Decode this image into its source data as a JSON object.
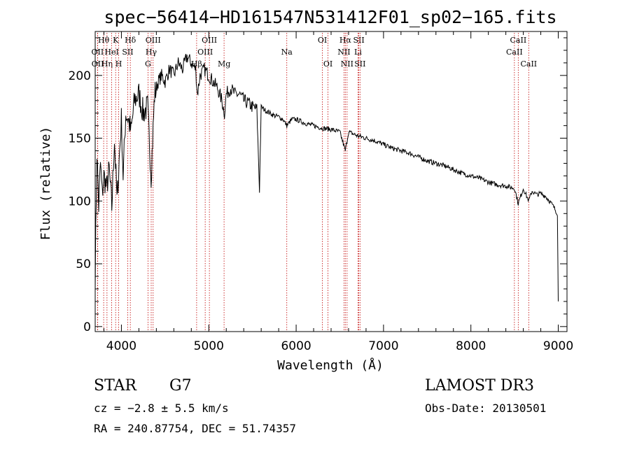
{
  "chart_data": {
    "type": "line",
    "title": "spec−56414−HD161547N531412F01_sp02−165.fits",
    "xlabel": "Wavelength (Å)",
    "ylabel": "Flux (relative)",
    "xlim": [
      3700,
      9100
    ],
    "ylim": [
      -4,
      235
    ],
    "xticks": [
      4000,
      5000,
      6000,
      7000,
      8000,
      9000
    ],
    "yticks": [
      0,
      50,
      100,
      150,
      200
    ],
    "series": [
      {
        "name": "flux",
        "x": [
          3700,
          3720,
          3740,
          3760,
          3780,
          3800,
          3830,
          3860,
          3890,
          3920,
          3950,
          3980,
          4000,
          4020,
          4050,
          4080,
          4110,
          4150,
          4200,
          4250,
          4300,
          4340,
          4380,
          4420,
          4460,
          4500,
          4550,
          4600,
          4650,
          4700,
          4750,
          4800,
          4850,
          4870,
          4900,
          4950,
          5000,
          5050,
          5100,
          5150,
          5180,
          5200,
          5250,
          5300,
          5350,
          5400,
          5450,
          5500,
          5550,
          5580,
          5600,
          5650,
          5700,
          5750,
          5800,
          5850,
          5893,
          5950,
          6000,
          6100,
          6200,
          6300,
          6400,
          6500,
          6563,
          6600,
          6700,
          6800,
          6900,
          7000,
          7100,
          7200,
          7300,
          7400,
          7500,
          7600,
          7700,
          7800,
          7900,
          8000,
          8100,
          8200,
          8300,
          8400,
          8500,
          8542,
          8600,
          8662,
          8700,
          8750,
          8800,
          8850,
          8900,
          8950,
          8990,
          9000
        ],
        "values": [
          40,
          140,
          95,
          130,
          105,
          120,
          110,
          125,
          95,
          150,
          100,
          140,
          165,
          120,
          170,
          165,
          155,
          180,
          185,
          170,
          175,
          120,
          185,
          195,
          200,
          195,
          205,
          200,
          210,
          205,
          215,
          210,
          205,
          185,
          200,
          205,
          200,
          195,
          190,
          180,
          170,
          185,
          190,
          185,
          185,
          180,
          178,
          175,
          173,
          110,
          175,
          172,
          170,
          168,
          167,
          165,
          160,
          165,
          165,
          162,
          160,
          158,
          157,
          155,
          140,
          155,
          152,
          150,
          148,
          145,
          142,
          140,
          138,
          135,
          132,
          130,
          128,
          125,
          122,
          120,
          118,
          115,
          113,
          112,
          110,
          98,
          110,
          100,
          108,
          105,
          106,
          104,
          100,
          95,
          90,
          20
        ]
      }
    ],
    "spectral_lines": [
      {
        "label": "Hθ",
        "x": 3797,
        "row": 0
      },
      {
        "label": "OII",
        "x": 3727,
        "row": 1
      },
      {
        "label": "OII",
        "x": 3729,
        "row": 2
      },
      {
        "label": "Hη",
        "x": 3835,
        "row": 2
      },
      {
        "label": "HeI",
        "x": 3889,
        "row": 1
      },
      {
        "label": "K",
        "x": 3934,
        "row": 0
      },
      {
        "label": "SII",
        "x": 4072,
        "row": 1
      },
      {
        "label": "H",
        "x": 3969,
        "row": 2
      },
      {
        "label": "Hδ",
        "x": 4102,
        "row": 0
      },
      {
        "label": "OIII",
        "x": 4363,
        "row": 0
      },
      {
        "label": "Hγ",
        "x": 4341,
        "row": 1
      },
      {
        "label": "G",
        "x": 4304,
        "row": 2
      },
      {
        "label": "Hβ",
        "x": 4861,
        "row": 2
      },
      {
        "label": "OIII",
        "x": 4959,
        "row": 1
      },
      {
        "label": "OIII",
        "x": 5007,
        "row": 0
      },
      {
        "label": "Mg",
        "x": 5175,
        "row": 2
      },
      {
        "label": "Na",
        "x": 5893,
        "row": 1
      },
      {
        "label": "OI",
        "x": 6300,
        "row": 0
      },
      {
        "label": "OI",
        "x": 6364,
        "row": 2
      },
      {
        "label": "Hα",
        "x": 6563,
        "row": 0
      },
      {
        "label": "NII",
        "x": 6548,
        "row": 1
      },
      {
        "label": "NII",
        "x": 6583,
        "row": 2
      },
      {
        "label": "SII",
        "x": 6717,
        "row": 0
      },
      {
        "label": "Li",
        "x": 6708,
        "row": 1
      },
      {
        "label": "SII",
        "x": 6731,
        "row": 2
      },
      {
        "label": "CaII",
        "x": 8542,
        "row": 0
      },
      {
        "label": "CaII",
        "x": 8498,
        "row": 1
      },
      {
        "label": "CaII",
        "x": 8662,
        "row": 2
      }
    ]
  },
  "info": {
    "object_type": "STAR",
    "subclass": "G7",
    "cz": "cz = −2.8 ± 5.5 km/s",
    "coords": "RA = 240.87754, DEC =  51.74357",
    "survey": "LAMOST DR3",
    "obs_date": "Obs-Date: 20130501"
  },
  "colors": {
    "line": "#000000",
    "marker": "#c00000",
    "axis": "#000000"
  }
}
